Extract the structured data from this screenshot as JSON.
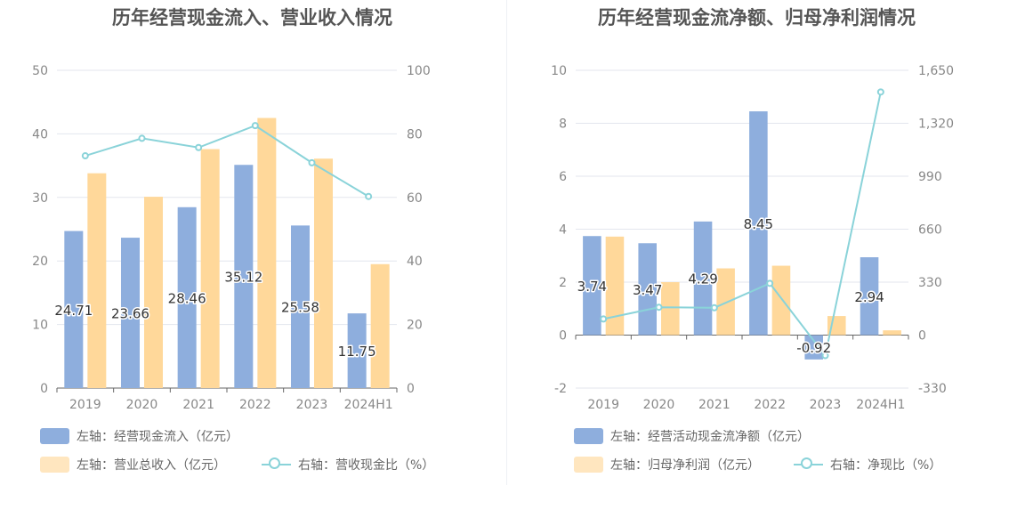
{
  "chart_data": [
    {
      "type": "bar",
      "title": "历年经营现金流入、营业收入情况",
      "categories": [
        "2019",
        "2020",
        "2021",
        "2022",
        "2023",
        "2024H1"
      ],
      "left_axis": {
        "ylim": [
          0,
          50
        ],
        "ticks": [
          "0",
          "10",
          "20",
          "30",
          "40",
          "50"
        ]
      },
      "right_axis": {
        "ylim": [
          0,
          100
        ],
        "ticks": [
          "0",
          "20",
          "40",
          "60",
          "80",
          "100"
        ]
      },
      "grid": true,
      "series": [
        {
          "name": "左轴：经营现金流入（亿元）",
          "type": "bar",
          "axis": "left",
          "color": "#8eaedd",
          "values": [
            24.71,
            23.66,
            28.46,
            35.12,
            25.58,
            11.75
          ],
          "labels": [
            "24.71",
            "23.66",
            "28.46",
            "35.12",
            "25.58",
            "11.75"
          ]
        },
        {
          "name": "左轴：营业总收入（亿元）",
          "type": "bar",
          "axis": "left",
          "color": "#ffd89a",
          "values": [
            33.8,
            30.1,
            37.6,
            42.5,
            36.1,
            19.5
          ]
        },
        {
          "name": "右轴：营收现金比（%）",
          "type": "line",
          "axis": "right",
          "color": "#8ad3d9",
          "values": [
            73.1,
            78.6,
            75.7,
            82.6,
            70.9,
            60.3
          ]
        }
      ],
      "legend_placement": "bottom"
    },
    {
      "type": "bar",
      "title": "历年经营现金流净额、归母净利润情况",
      "categories": [
        "2019",
        "2020",
        "2021",
        "2022",
        "2023",
        "2024H1"
      ],
      "left_axis": {
        "ylim": [
          -2,
          10
        ],
        "ticks": [
          "-2",
          "0",
          "2",
          "4",
          "6",
          "8",
          "10"
        ]
      },
      "right_axis": {
        "ylim": [
          -330,
          1650
        ],
        "ticks": [
          "-330",
          "0",
          "330",
          "660",
          "990",
          "1,320",
          "1,650"
        ]
      },
      "grid": true,
      "series": [
        {
          "name": "左轴：经营活动现金流净额（亿元）",
          "type": "bar",
          "axis": "left",
          "color": "#8eaedd",
          "values": [
            3.74,
            3.47,
            4.29,
            8.45,
            -0.92,
            2.94
          ],
          "labels": [
            "3.74",
            "3.47",
            "4.29",
            "8.45",
            "-0.92",
            "2.94"
          ]
        },
        {
          "name": "左轴：归母净利润（亿元）",
          "type": "bar",
          "axis": "left",
          "color": "#ffd89a",
          "values": [
            3.72,
            2.0,
            2.52,
            2.62,
            0.72,
            0.18
          ]
        },
        {
          "name": "右轴：净现比（%）",
          "type": "line",
          "axis": "right",
          "color": "#8ad3d9",
          "values": [
            100.5,
            173.5,
            170.2,
            322.5,
            -127.8,
            1515
          ]
        }
      ],
      "legend_placement": "bottom"
    }
  ]
}
